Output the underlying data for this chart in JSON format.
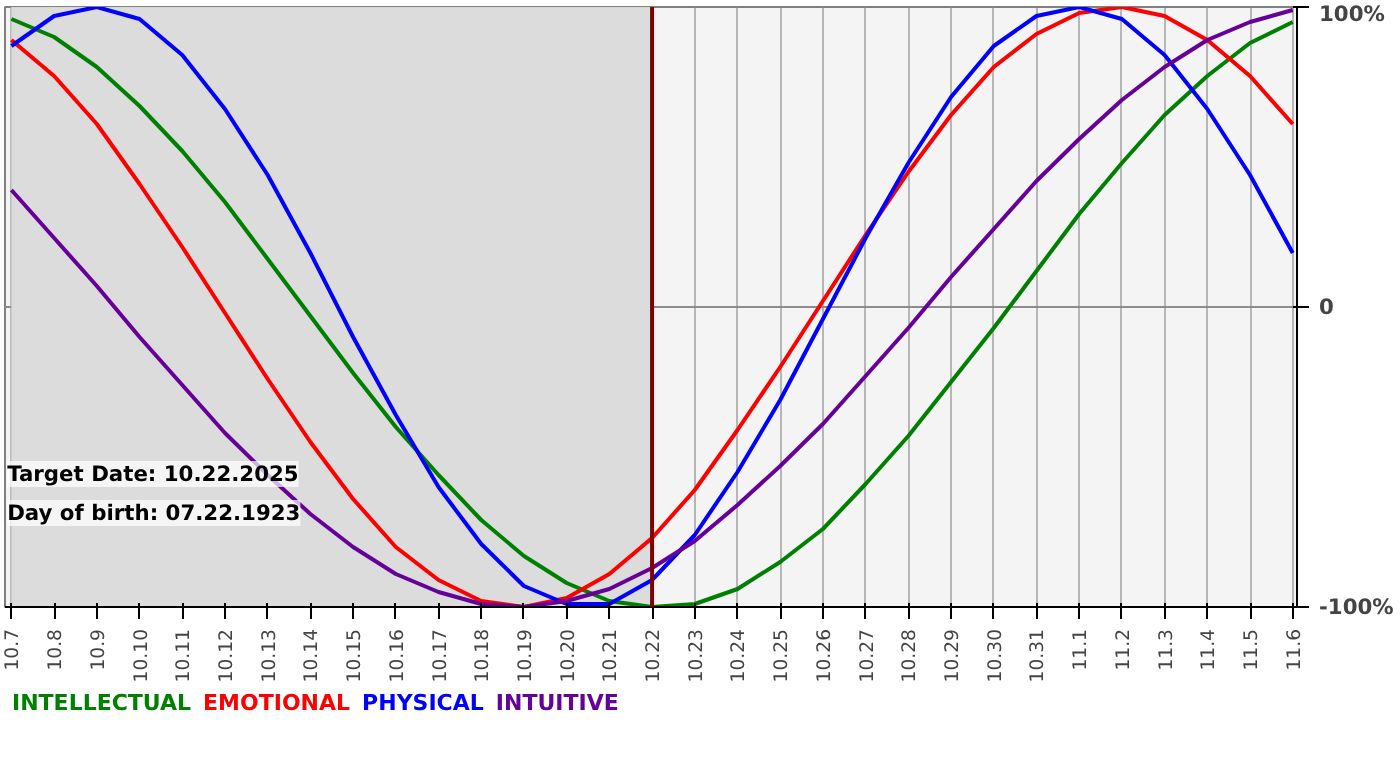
{
  "chart_data": {
    "type": "line",
    "categories": [
      "10.7",
      "10.8",
      "10.9",
      "10.10",
      "10.11",
      "10.12",
      "10.13",
      "10.14",
      "10.15",
      "10.16",
      "10.17",
      "10.18",
      "10.19",
      "10.20",
      "10.21",
      "10.22",
      "10.23",
      "10.24",
      "10.25",
      "10.26",
      "10.27",
      "10.28",
      "10.29",
      "10.30",
      "10.31",
      "11.1",
      "11.2",
      "11.3",
      "11.4",
      "11.5",
      "11.6"
    ],
    "series": [
      {
        "name": "INTELLECTUAL",
        "color": "#008000",
        "values": [
          96,
          90,
          80,
          67,
          52,
          35,
          16,
          -3,
          -22,
          -40,
          -56,
          -71,
          -83,
          -92,
          -98,
          -100,
          -99,
          -94,
          -85,
          -74,
          -59,
          -43,
          -25,
          -7,
          12,
          31,
          48,
          64,
          77,
          88,
          95
        ]
      },
      {
        "name": "EMOTIONAL",
        "color": "#ff0000",
        "values": [
          89,
          77,
          61,
          41,
          20,
          -2,
          -24,
          -45,
          -64,
          -80,
          -91,
          -98,
          -100,
          -97,
          -89,
          -77,
          -61,
          -41,
          -20,
          2,
          24,
          45,
          64,
          80,
          91,
          98,
          100,
          97,
          89,
          77,
          61
        ]
      },
      {
        "name": "PHYSICAL",
        "color": "#0000ff",
        "values": [
          87,
          97,
          100,
          96,
          84,
          66,
          44,
          18,
          -10,
          -36,
          -60,
          -79,
          -93,
          -99,
          -99,
          -91,
          -76,
          -55,
          -31,
          -4,
          23,
          48,
          70,
          87,
          97,
          100,
          96,
          84,
          66,
          44,
          18
        ]
      },
      {
        "name": "INTUITIVE",
        "color": "#660099",
        "values": [
          39,
          23,
          7,
          -10,
          -26,
          -42,
          -56,
          -69,
          -80,
          -89,
          -95,
          -99,
          -100,
          -98,
          -94,
          -87,
          -78,
          -66,
          -53,
          -39,
          -23,
          -7,
          10,
          26,
          42,
          56,
          69,
          80,
          89,
          95,
          99
        ]
      }
    ],
    "ylim": [
      -100,
      100
    ],
    "yticks": [
      {
        "value": 100,
        "label": "100%"
      },
      0,
      {
        "value": -100,
        "label": "-100%"
      }
    ],
    "grid": true,
    "ref_lines": [
      {
        "axis": "x",
        "value": "10.22",
        "color": "#800000"
      }
    ],
    "bands": [
      {
        "axis": "x",
        "from": "10.7",
        "to": "10.22",
        "color": "#dcdcdc"
      }
    ],
    "annotations": [
      "Target Date: 10.22.2025",
      "Day of birth: 07.22.1923"
    ]
  }
}
